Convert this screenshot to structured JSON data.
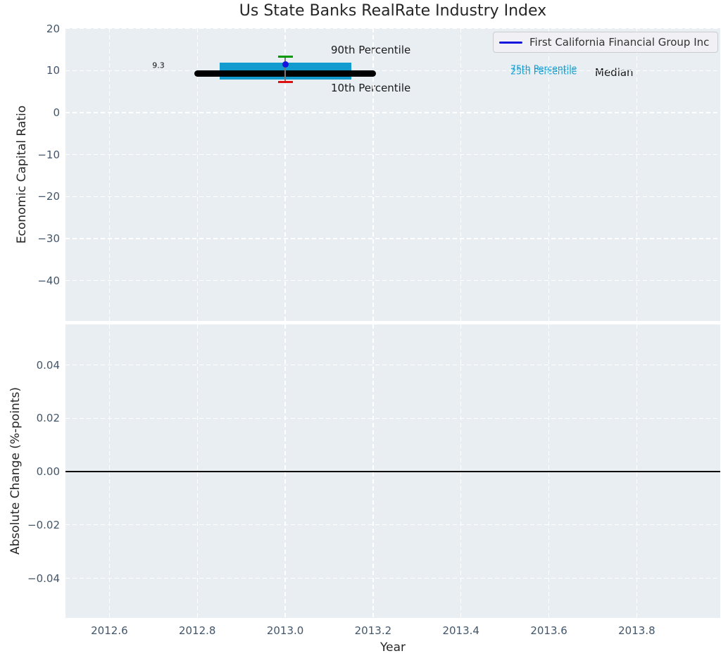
{
  "title": "Us State Banks RealRate Industry Index",
  "colors": {
    "axes_background": "#e9eef2",
    "grid": "#ffffff",
    "tick_label": "#42566b",
    "iqr_band": "#119bce",
    "median_line": "#000000",
    "p90_cap": "#009a00",
    "p10_cap": "#dd1111",
    "company_point": "#1414dd",
    "whisker": "#777777",
    "zero_line": "#000000",
    "legend_face": "#f0f0f5",
    "legend_border": "#cccccc"
  },
  "legend": {
    "label": "First California Financial Group Inc",
    "line_color": "#1414dd"
  },
  "annotations": {
    "p90_label": "90th Percentile",
    "p10_label": "10th Percentile",
    "p75_label": "75th Percentile",
    "p25_label": "25th Percentile",
    "median_label": "Median",
    "median_value_label": "9.3"
  },
  "chart_data": {
    "type": "errorbar",
    "title": "Us State Banks RealRate Industry Index",
    "xlabel": "Year",
    "xlim": [
      2012.5,
      2013.99
    ],
    "xticks": {
      "values": [
        2012.6,
        2012.8,
        2013.0,
        2013.2,
        2013.4,
        2013.6,
        2013.8
      ],
      "labels": [
        "2012.6",
        "2012.8",
        "2013.0",
        "2013.2",
        "2013.4",
        "2013.6",
        "2013.8"
      ]
    },
    "grid": true,
    "legend_position": "upper right",
    "subplots": [
      {
        "ylabel": "Economic Capital Ratio",
        "ylim": [
          -49.6,
          20.1
        ],
        "yticks": {
          "values": [
            20,
            10,
            0,
            -10,
            -20,
            -30,
            -40
          ],
          "labels": [
            "20",
            "10",
            "0",
            "−10",
            "−20",
            "−30",
            "−40"
          ]
        },
        "industry_index": {
          "x": 2013.0,
          "median": 9.3,
          "p75": 11.9,
          "p25": 7.9,
          "p90": 13.3,
          "p10": 7.3,
          "median_bar_xspan": [
            2012.8,
            2013.2
          ],
          "iqr_band_xspan": [
            2012.85,
            2013.15
          ],
          "median_value_annotation": 9.3
        },
        "company_series": [
          {
            "name": "First California Financial Group Inc",
            "x": [
              2013.0
            ],
            "y": [
              11.5
            ]
          }
        ]
      },
      {
        "ylabel": "Absolute Change (%-points)",
        "ylim": [
          -0.0549,
          0.0552
        ],
        "yticks": {
          "values": [
            0.04,
            0.02,
            0.0,
            -0.02,
            -0.04
          ],
          "labels": [
            "0.04",
            "0.02",
            "0.00",
            "−0.02",
            "−0.04"
          ]
        },
        "zero_line": 0.0
      }
    ]
  }
}
